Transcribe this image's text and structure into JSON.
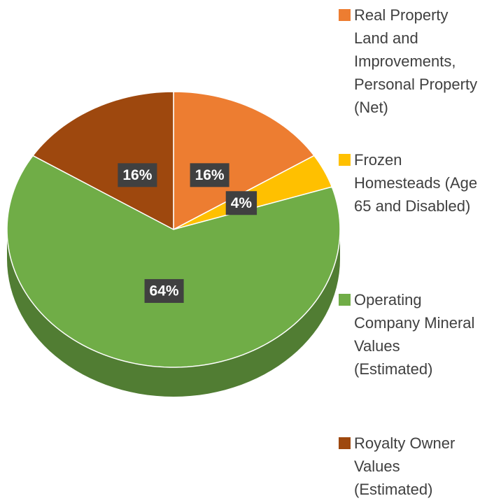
{
  "chart_data": {
    "type": "pie",
    "categories": [
      "Real Property Land and Improvements, Personal Property  (Net)",
      "Frozen Homesteads (Age 65 and Disabled)",
      "Operating Company Mineral Values (Estimated)",
      "Royalty Owner Values (Estimated)"
    ],
    "values": [
      16,
      4,
      64,
      16
    ],
    "value_labels": [
      "16%",
      "4%",
      "64%",
      "16%"
    ],
    "colors": [
      "#ed7d31",
      "#ffc000",
      "#70ad47",
      "#9e480e"
    ],
    "legend": "right"
  }
}
